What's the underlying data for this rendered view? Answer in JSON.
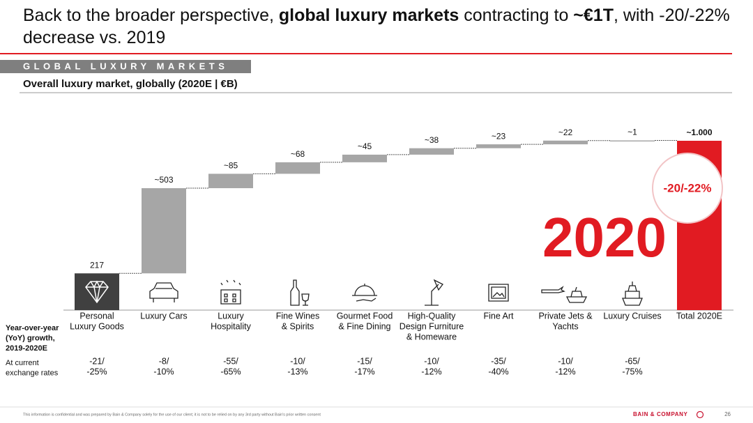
{
  "header": {
    "title": [
      "Back to the broader perspective, ",
      "global luxury markets",
      " contracting to ",
      "~€1T",
      ", with -20/-22% decrease vs. 2019"
    ],
    "title_bold": [
      false,
      true,
      false,
      true,
      false
    ],
    "section": "GLOBAL LUXURY MARKETS"
  },
  "chart_data": {
    "type": "waterfall",
    "title": "Overall luxury market, globally (2020E | €B)",
    "categories": [
      [
        "Personal",
        "Luxury Goods"
      ],
      [
        "Luxury Cars"
      ],
      [
        "Luxury",
        "Hospitality"
      ],
      [
        "Fine Wines",
        "& Spirits"
      ],
      [
        "Gourmet Food",
        "& Fine Dining"
      ],
      [
        "High-Quality",
        "Design Furniture",
        "& Homeware"
      ],
      [
        "Fine Art"
      ],
      [
        "Private Jets &",
        "Yachts"
      ],
      [
        "Luxury Cruises"
      ],
      [
        "Total 2020E"
      ]
    ],
    "values": [
      217,
      503,
      85,
      68,
      45,
      38,
      23,
      22,
      1,
      1000
    ],
    "value_labels": [
      "217",
      "~503",
      "~85",
      "~68",
      "~45",
      "~38",
      "~23",
      "~22",
      "~1",
      "~1.000"
    ],
    "last_is_total": true,
    "colors": {
      "start": "#404040",
      "step": "#a6a6a6",
      "total": "#e11b22"
    },
    "growth_title": [
      "Year-over-year",
      "(YoY) growth,",
      "2019-2020E"
    ],
    "growth_subtitle": [
      "At current",
      "exchange rates"
    ],
    "growth": [
      [
        "-21/",
        "-25%"
      ],
      [
        "-8/",
        "-10%"
      ],
      [
        "-55/",
        "-65%"
      ],
      [
        "-10/",
        "-13%"
      ],
      [
        "-15/",
        "-17%"
      ],
      [
        "-10/",
        "-12%"
      ],
      [
        "-35/",
        "-40%"
      ],
      [
        "-10/",
        "-12%"
      ],
      [
        "-65/",
        "-75%"
      ]
    ],
    "annotations": {
      "year": "2020",
      "change": "-20/-22%"
    }
  },
  "footer": {
    "note": "This information is confidential and was prepared by Bain & Company solely for the use of our client; it is not to be relied on by any 3rd party without Bain's prior written consent",
    "brand": "BAIN & COMPANY",
    "page": "26"
  }
}
